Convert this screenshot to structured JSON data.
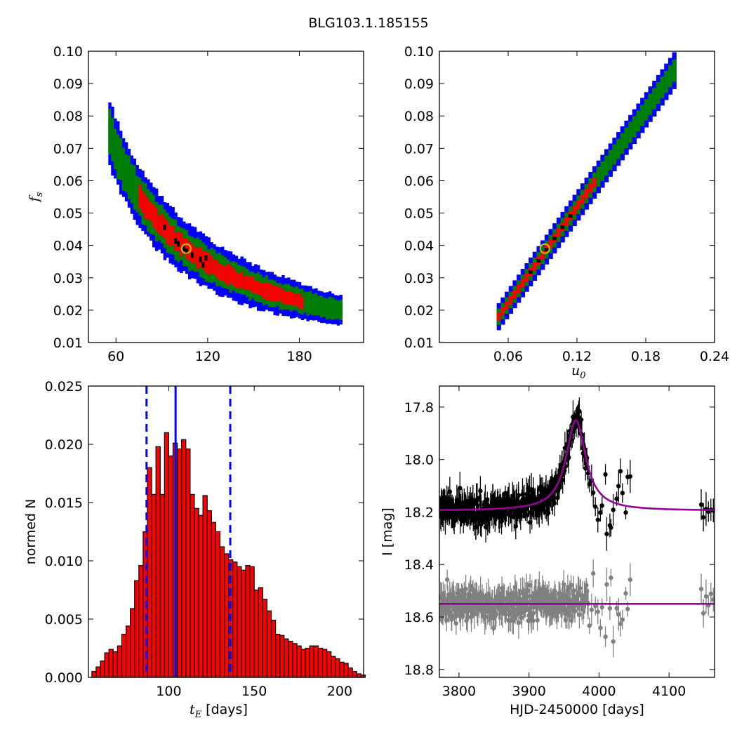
{
  "figure": {
    "title": "BLG103.1.185155"
  },
  "colors": {
    "level1": "#0000ff",
    "level2": "#008000",
    "level3": "#ff0000",
    "level4": "#000000",
    "marker_edge": "#bfbf00",
    "hist_fill": "#ff0000",
    "interval_line": "#0000ff",
    "model": "#990099",
    "data_main": "#000000",
    "data_resid": "#808080"
  },
  "chart_data": [
    {
      "id": "tE_fs",
      "type": "heatmap",
      "xlabel": "",
      "ylabel": "f_s",
      "xlim": [
        42,
        222
      ],
      "ylim": [
        0.01,
        0.1
      ],
      "xticks": [
        60,
        120,
        180
      ],
      "yticks": [
        0.01,
        0.02,
        0.03,
        0.04,
        0.05,
        0.06,
        0.07,
        0.08,
        0.09,
        0.1
      ],
      "ytick_labels": [
        "0.01",
        "0.02",
        "0.03",
        "0.04",
        "0.05",
        "0.06",
        "0.07",
        "0.08",
        "0.09",
        "0.10"
      ],
      "band": {
        "form": "fs = 4.1 / tE",
        "x_min": 55,
        "x_max": 208
      },
      "best_fit": {
        "x": 106,
        "y": 0.039
      }
    },
    {
      "id": "u0_fs",
      "type": "heatmap",
      "xlabel": "u_0",
      "ylabel": "",
      "xlim": [
        0.0,
        0.24
      ],
      "ylim": [
        0.01,
        0.1
      ],
      "xticks": [
        0.06,
        0.12,
        0.18,
        0.24
      ],
      "xtick_labels": [
        "0.06",
        "0.12",
        "0.18",
        "0.24"
      ],
      "yticks": [
        0.01,
        0.02,
        0.03,
        0.04,
        0.05,
        0.06,
        0.07,
        0.08,
        0.09,
        0.1
      ],
      "ytick_labels": [
        "0.01",
        "0.02",
        "0.03",
        "0.04",
        "0.05",
        "0.06",
        "0.07",
        "0.08",
        "0.09",
        "0.10"
      ],
      "band": {
        "x_start": 0.05,
        "y_start": 0.018,
        "x_end": 0.203,
        "y_end": 0.094
      },
      "best_fit": {
        "x": 0.092,
        "y": 0.039
      }
    },
    {
      "id": "tE_hist",
      "type": "bar",
      "xlabel": "t_E [days]",
      "ylabel": "normed N",
      "xlim": [
        53,
        214
      ],
      "ylim": [
        0.0,
        0.025
      ],
      "xticks": [
        100,
        150,
        200
      ],
      "yticks": [
        0.0,
        0.005,
        0.01,
        0.015,
        0.02,
        0.025
      ],
      "ytick_labels": [
        "0.000",
        "0.005",
        "0.010",
        "0.015",
        "0.020",
        "0.025"
      ],
      "bin_width": 2.5,
      "bin_start": 55,
      "values": [
        0.0005,
        0.0009,
        0.0014,
        0.0021,
        0.0024,
        0.0022,
        0.0027,
        0.0037,
        0.0044,
        0.0059,
        0.0083,
        0.0096,
        0.0125,
        0.018,
        0.0157,
        0.0198,
        0.0157,
        0.021,
        0.019,
        0.0201,
        0.0196,
        0.0204,
        0.0196,
        0.0157,
        0.0145,
        0.0139,
        0.0156,
        0.0143,
        0.0133,
        0.0125,
        0.0112,
        0.0106,
        0.0101,
        0.0099,
        0.0095,
        0.0092,
        0.0096,
        0.0095,
        0.0075,
        0.0077,
        0.0067,
        0.0057,
        0.0049,
        0.0037,
        0.0036,
        0.0033,
        0.0031,
        0.0029,
        0.0027,
        0.0024,
        0.0025,
        0.0027,
        0.0027,
        0.0025,
        0.0024,
        0.0022,
        0.0018,
        0.0016,
        0.0013,
        0.0012,
        0.0008,
        0.0005,
        0.0003,
        0.0002,
        0.0001,
        0.0001
      ],
      "median": 104,
      "interval": [
        87,
        136
      ]
    },
    {
      "id": "light_curve",
      "type": "scatter",
      "xlabel": "HJD-2450000 [days]",
      "ylabel": "I [mag]",
      "xlim": [
        3772,
        4165
      ],
      "ylim": [
        18.83,
        17.72
      ],
      "xticks": [
        3800,
        3900,
        4000,
        4100
      ],
      "yticks": [
        17.8,
        18.0,
        18.2,
        18.4,
        18.6,
        18.8
      ],
      "ytick_labels": [
        "17.8",
        "18.0",
        "18.2",
        "18.4",
        "18.6",
        "18.8"
      ],
      "model": {
        "t0": 3967,
        "peak_mag": 17.85,
        "base_mag": 18.195,
        "width": 17
      },
      "residual_baseline": 18.55
    }
  ]
}
